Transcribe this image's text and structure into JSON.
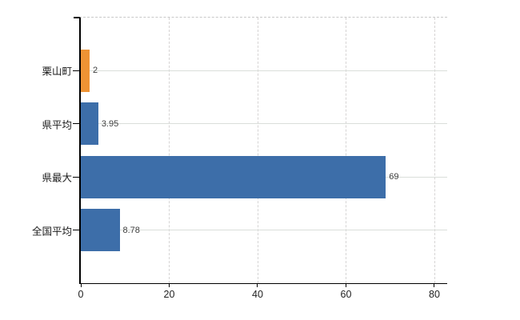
{
  "chart_data": {
    "type": "bar",
    "orientation": "horizontal",
    "title": "",
    "xlabel": "",
    "ylabel": "",
    "categories": [
      "栗山町",
      "県平均",
      "県最大",
      "全国平均"
    ],
    "values": [
      2,
      3.95,
      69,
      8.78
    ],
    "value_labels": [
      "2",
      "3.95",
      "69",
      "8.78"
    ],
    "bar_colors": [
      "#ee9334",
      "#3d6ea9",
      "#3d6ea9",
      "#3d6ea9"
    ],
    "highlight_color": "#ee9334",
    "default_bar_color": "#3d6ea9",
    "x_tick_labels": [
      "0",
      "20",
      "40",
      "60",
      "80"
    ],
    "x_tick_values": [
      0,
      20,
      40,
      60,
      80
    ],
    "xlim": [
      0,
      82.9
    ],
    "grid": true,
    "legend_position": "none"
  }
}
